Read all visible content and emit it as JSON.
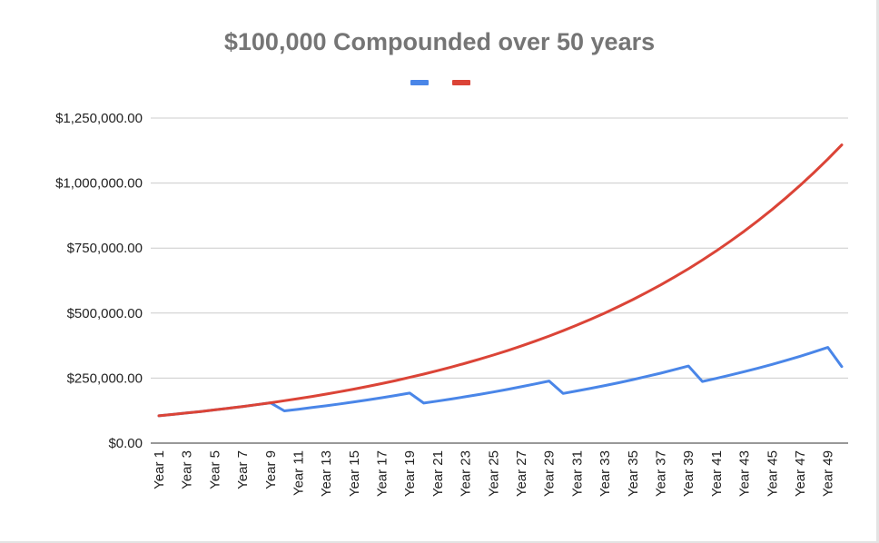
{
  "chart_data": {
    "type": "line",
    "title": "$100,000 Compounded over 50 years",
    "xlabel": "",
    "ylabel": "",
    "ylim": [
      0,
      1250000
    ],
    "yticks": [
      "$0.00",
      "$250,000.00",
      "$500,000.00",
      "$750,000.00",
      "$1,000,000.00",
      "$1,250,000.00"
    ],
    "ytick_values": [
      0,
      250000,
      500000,
      750000,
      1000000,
      1250000
    ],
    "grid": true,
    "legend": "top-center",
    "categories": [
      "Year 1",
      "Year 2",
      "Year 3",
      "Year 4",
      "Year 5",
      "Year 6",
      "Year 7",
      "Year 8",
      "Year 9",
      "Year 10",
      "Year 11",
      "Year 12",
      "Year 13",
      "Year 14",
      "Year 15",
      "Year 16",
      "Year 17",
      "Year 18",
      "Year 19",
      "Year 20",
      "Year 21",
      "Year 22",
      "Year 23",
      "Year 24",
      "Year 25",
      "Year 26",
      "Year 27",
      "Year 28",
      "Year 29",
      "Year 30",
      "Year 31",
      "Year 32",
      "Year 33",
      "Year 34",
      "Year 35",
      "Year 36",
      "Year 37",
      "Year 38",
      "Year 39",
      "Year 40",
      "Year 41",
      "Year 42",
      "Year 43",
      "Year 44",
      "Year 45",
      "Year 46",
      "Year 47",
      "Year 48",
      "Year 49",
      "Year 50"
    ],
    "xtick_labels": [
      "Year 1",
      "Year 3",
      "Year 5",
      "Year 7",
      "Year 9",
      "Year 11",
      "Year 13",
      "Year 15",
      "Year 17",
      "Year 19",
      "Year 21",
      "Year 23",
      "Year 25",
      "Year 27",
      "Year 29",
      "Year 31",
      "Year 33",
      "Year 35",
      "Year 37",
      "Year 39",
      "Year 41",
      "Year 43",
      "Year 45",
      "Year 47",
      "Year 49"
    ],
    "series": [
      {
        "color": "#4a86e8",
        "values": [
          105000,
          110250,
          115763,
          121551,
          127628,
          134010,
          140710,
          147746,
          155133,
          124106,
          130312,
          136827,
          143669,
          150852,
          158395,
          166315,
          174630,
          183362,
          192530,
          154024,
          161725,
          169811,
          178302,
          187217,
          196578,
          206407,
          216727,
          227563,
          238942,
          191153,
          200711,
          210747,
          221284,
          232349,
          243966,
          256164,
          268972,
          282421,
          296542,
          237234,
          249095,
          261550,
          274627,
          288359,
          302777,
          317916,
          333812,
          350502,
          368027,
          294422
        ]
      },
      {
        "color": "#db4437",
        "values": [
          105000,
          110250,
          115763,
          121551,
          127628,
          134010,
          140710,
          147746,
          155133,
          162889,
          171034,
          179586,
          188565,
          197993,
          207893,
          218287,
          229202,
          240662,
          252695,
          265330,
          278596,
          292526,
          307152,
          322510,
          338635,
          355567,
          373346,
          392013,
          411614,
          432194,
          453804,
          476494,
          500319,
          525335,
          551602,
          579182,
          608141,
          638548,
          670475,
          703999,
          739199,
          776159,
          814967,
          855715,
          898501,
          943426,
          990597,
          1040127,
          1092133,
          1146740
        ]
      }
    ]
  }
}
